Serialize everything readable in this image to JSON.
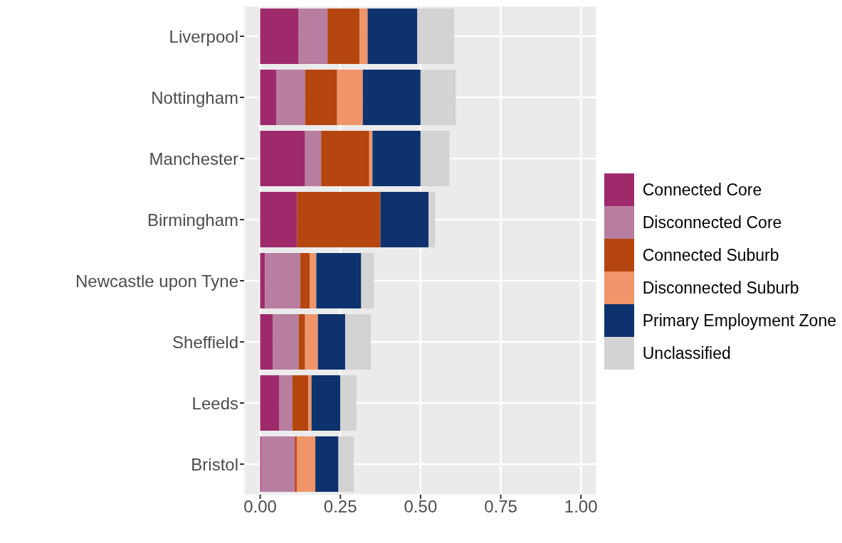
{
  "chart_data": {
    "type": "bar",
    "orientation": "horizontal",
    "stacked": true,
    "categories": [
      "Liverpool",
      "Nottingham",
      "Manchester",
      "Birmingham",
      "Newcastle upon Tyne",
      "Sheffield",
      "Leeds",
      "Bristol"
    ],
    "series": [
      {
        "name": "Connected Core",
        "color": "#9e2a6b",
        "values": [
          0.12,
          0.05,
          0.14,
          0.115,
          0.015,
          0.04,
          0.06,
          0.003
        ]
      },
      {
        "name": "Disconnected Core",
        "color": "#b77ea0",
        "values": [
          0.09,
          0.09,
          0.05,
          0,
          0.11,
          0.08,
          0.04,
          0.105
        ]
      },
      {
        "name": "Connected Suburb",
        "color": "#b5460f",
        "values": [
          0.1,
          0.1,
          0.15,
          0.26,
          0.03,
          0.02,
          0.05,
          0.006
        ]
      },
      {
        "name": "Disconnected Suburb",
        "color": "#f0956a",
        "values": [
          0.025,
          0.08,
          0.01,
          0,
          0.02,
          0.04,
          0.01,
          0.058
        ]
      },
      {
        "name": "Primary Employment Zone",
        "color": "#0e326e",
        "values": [
          0.155,
          0.18,
          0.15,
          0.15,
          0.14,
          0.085,
          0.09,
          0.072
        ]
      },
      {
        "name": "Unclassified",
        "color": "#d3d3d3",
        "values": [
          0.115,
          0.11,
          0.09,
          0.02,
          0.04,
          0.08,
          0.05,
          0.048
        ]
      }
    ],
    "xlim": [
      -0.05,
      1.05
    ],
    "xticks": [
      {
        "value": 0,
        "label": "0.00"
      },
      {
        "value": 0.25,
        "label": "0.25"
      },
      {
        "value": 0.5,
        "label": "0.50"
      },
      {
        "value": 0.75,
        "label": "0.75"
      },
      {
        "value": 1,
        "label": "1.00"
      }
    ],
    "grid": true,
    "legend": "right"
  }
}
